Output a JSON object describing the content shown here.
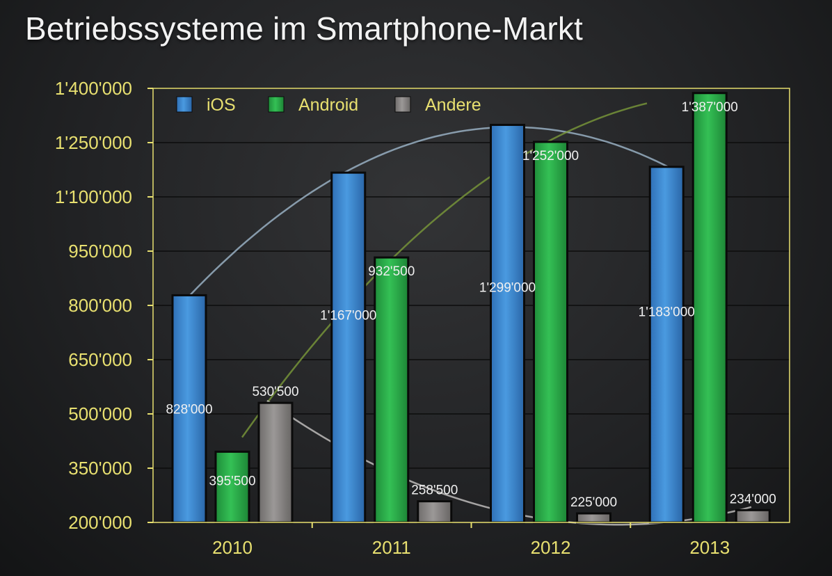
{
  "title": "Betriebssysteme im Smartphone-Markt",
  "colors": {
    "ios": "#3d8bd6",
    "android": "#2bb04a",
    "andere": "#8a8786",
    "axis": "#e8e070",
    "tick_text": "#e8e070",
    "label_text": "#f0f0f0"
  },
  "chart_data": {
    "type": "bar",
    "title": "Betriebssysteme im Smartphone-Markt",
    "categories": [
      "2010",
      "2011",
      "2012",
      "2013"
    ],
    "series": [
      {
        "name": "iOS",
        "values": [
          828000,
          1167000,
          1299000,
          1183000
        ],
        "labels": [
          "828'000",
          "1'167'000",
          "1'299'000",
          "1'183'000"
        ]
      },
      {
        "name": "Android",
        "values": [
          395500,
          932500,
          1252000,
          1387000
        ],
        "labels": [
          "395'500",
          "932'500",
          "1'252'000",
          "1'387'000"
        ]
      },
      {
        "name": "Andere",
        "values": [
          530500,
          258500,
          225000,
          234000
        ],
        "labels": [
          "530'500",
          "258'500",
          "225'000",
          "234'000"
        ]
      }
    ],
    "ylim": [
      200000,
      1400000
    ],
    "yticks": [
      200000,
      350000,
      500000,
      650000,
      800000,
      950000,
      1100000,
      1250000,
      1400000
    ],
    "ytick_labels": [
      "200'000",
      "350'000",
      "500'000",
      "650'000",
      "800'000",
      "950'000",
      "1'100'000",
      "1'250'000",
      "1'400'000"
    ],
    "grid": true,
    "legend_position": "top-left",
    "trendlines": true
  }
}
